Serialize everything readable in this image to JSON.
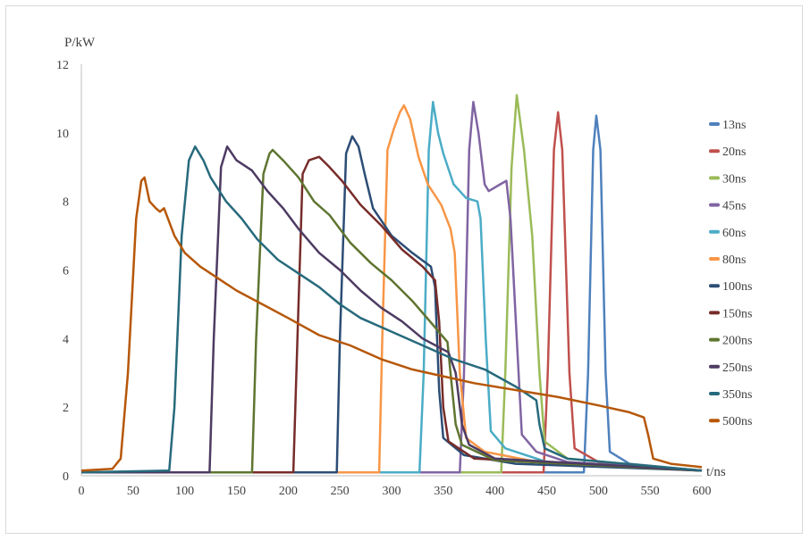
{
  "chart_data": {
    "type": "line",
    "title": "",
    "xlabel": "t/ns",
    "ylabel": "P/kW",
    "xlim": [
      0,
      600
    ],
    "ylim": [
      0,
      12
    ],
    "xticks": [
      "0",
      "50",
      "100",
      "150",
      "200",
      "250",
      "300",
      "350",
      "400",
      "450",
      "500",
      "550",
      "600"
    ],
    "yticks": [
      "0",
      "2",
      "4",
      "6",
      "8",
      "10",
      "12"
    ],
    "grid": false,
    "legend_position": "right",
    "series": [
      {
        "name": "13ns",
        "color": "#4F81BD",
        "points": [
          [
            0,
            0.1
          ],
          [
            486,
            0.1
          ],
          [
            490,
            3
          ],
          [
            495,
            9.5
          ],
          [
            498,
            10.5
          ],
          [
            502,
            9.5
          ],
          [
            507,
            3
          ],
          [
            511,
            0.7
          ],
          [
            530,
            0.35
          ],
          [
            600,
            0.15
          ]
        ]
      },
      {
        "name": "20ns",
        "color": "#C0504D",
        "points": [
          [
            0,
            0.1
          ],
          [
            447,
            0.1
          ],
          [
            451,
            3
          ],
          [
            457,
            9.5
          ],
          [
            461,
            10.6
          ],
          [
            465,
            9.5
          ],
          [
            472,
            3
          ],
          [
            477,
            0.8
          ],
          [
            500,
            0.4
          ],
          [
            600,
            0.15
          ]
        ]
      },
      {
        "name": "30ns",
        "color": "#9BBB59",
        "points": [
          [
            0,
            0.1
          ],
          [
            406,
            0.1
          ],
          [
            410,
            3
          ],
          [
            416,
            9
          ],
          [
            421,
            11.1
          ],
          [
            428,
            9.5
          ],
          [
            436,
            7
          ],
          [
            443,
            3
          ],
          [
            448,
            1.0
          ],
          [
            470,
            0.5
          ],
          [
            600,
            0.15
          ]
        ]
      },
      {
        "name": "45ns",
        "color": "#8064A2",
        "points": [
          [
            0,
            0.1
          ],
          [
            366,
            0.1
          ],
          [
            370,
            3
          ],
          [
            375,
            9.5
          ],
          [
            379,
            10.9
          ],
          [
            384,
            10
          ],
          [
            390,
            8.5
          ],
          [
            394,
            8.3
          ],
          [
            405,
            8.5
          ],
          [
            411,
            8.6
          ],
          [
            415,
            7.5
          ],
          [
            421,
            4
          ],
          [
            426,
            1.2
          ],
          [
            440,
            0.7
          ],
          [
            470,
            0.4
          ],
          [
            600,
            0.15
          ]
        ]
      },
      {
        "name": "60ns",
        "color": "#4BACC6",
        "points": [
          [
            0,
            0.1
          ],
          [
            327,
            0.1
          ],
          [
            331,
            3
          ],
          [
            336,
            9.5
          ],
          [
            340,
            10.9
          ],
          [
            345,
            10
          ],
          [
            350,
            9.4
          ],
          [
            360,
            8.5
          ],
          [
            372,
            8.1
          ],
          [
            383,
            8.0
          ],
          [
            386,
            7.5
          ],
          [
            391,
            4
          ],
          [
            396,
            1.3
          ],
          [
            410,
            0.8
          ],
          [
            450,
            0.4
          ],
          [
            600,
            0.15
          ]
        ]
      },
      {
        "name": "80ns",
        "color": "#F79646",
        "points": [
          [
            0,
            0.1
          ],
          [
            288,
            0.1
          ],
          [
            291,
            4
          ],
          [
            296,
            9.5
          ],
          [
            302,
            10.1
          ],
          [
            308,
            10.6
          ],
          [
            312,
            10.8
          ],
          [
            318,
            10.4
          ],
          [
            326,
            9.3
          ],
          [
            335,
            8.5
          ],
          [
            348,
            7.9
          ],
          [
            357,
            7.2
          ],
          [
            361,
            6.5
          ],
          [
            366,
            3
          ],
          [
            372,
            1.1
          ],
          [
            390,
            0.7
          ],
          [
            450,
            0.35
          ],
          [
            600,
            0.15
          ]
        ]
      },
      {
        "name": "100ns",
        "color": "#2C4D75",
        "points": [
          [
            0,
            0.1
          ],
          [
            247,
            0.1
          ],
          [
            250,
            4
          ],
          [
            256,
            9.4
          ],
          [
            262,
            9.9
          ],
          [
            268,
            9.6
          ],
          [
            274,
            8.8
          ],
          [
            282,
            7.8
          ],
          [
            300,
            7.0
          ],
          [
            320,
            6.5
          ],
          [
            338,
            6.1
          ],
          [
            342,
            5.5
          ],
          [
            346,
            2.5
          ],
          [
            350,
            1.1
          ],
          [
            370,
            0.6
          ],
          [
            420,
            0.35
          ],
          [
            600,
            0.15
          ]
        ]
      },
      {
        "name": "150ns",
        "color": "#772C2A",
        "points": [
          [
            0,
            0.1
          ],
          [
            205,
            0.1
          ],
          [
            209,
            4
          ],
          [
            214,
            8.8
          ],
          [
            220,
            9.2
          ],
          [
            230,
            9.3
          ],
          [
            240,
            9.0
          ],
          [
            252,
            8.6
          ],
          [
            270,
            7.9
          ],
          [
            290,
            7.3
          ],
          [
            310,
            6.6
          ],
          [
            330,
            6.1
          ],
          [
            342,
            5.7
          ],
          [
            346,
            4.5
          ],
          [
            350,
            2
          ],
          [
            355,
            1.0
          ],
          [
            380,
            0.5
          ],
          [
            600,
            0.15
          ]
        ]
      },
      {
        "name": "200ns",
        "color": "#5F7530",
        "points": [
          [
            0,
            0.1
          ],
          [
            165,
            0.1
          ],
          [
            169,
            4
          ],
          [
            176,
            8.8
          ],
          [
            182,
            9.4
          ],
          [
            185,
            9.5
          ],
          [
            195,
            9.2
          ],
          [
            210,
            8.7
          ],
          [
            225,
            8.0
          ],
          [
            240,
            7.6
          ],
          [
            260,
            6.8
          ],
          [
            280,
            6.2
          ],
          [
            300,
            5.7
          ],
          [
            320,
            5.1
          ],
          [
            340,
            4.4
          ],
          [
            354,
            3.9
          ],
          [
            357,
            3
          ],
          [
            362,
            1.5
          ],
          [
            368,
            0.9
          ],
          [
            400,
            0.45
          ],
          [
            600,
            0.15
          ]
        ]
      },
      {
        "name": "250ns",
        "color": "#4D3B62",
        "points": [
          [
            0,
            0.1
          ],
          [
            124,
            0.1
          ],
          [
            128,
            4
          ],
          [
            135,
            9.0
          ],
          [
            141,
            9.6
          ],
          [
            150,
            9.2
          ],
          [
            165,
            8.9
          ],
          [
            180,
            8.3
          ],
          [
            195,
            7.8
          ],
          [
            210,
            7.2
          ],
          [
            230,
            6.5
          ],
          [
            250,
            6.0
          ],
          [
            270,
            5.4
          ],
          [
            290,
            4.9
          ],
          [
            310,
            4.5
          ],
          [
            330,
            4.0
          ],
          [
            355,
            3.6
          ],
          [
            362,
            3.0
          ],
          [
            368,
            1.5
          ],
          [
            375,
            0.9
          ],
          [
            400,
            0.5
          ],
          [
            600,
            0.15
          ]
        ]
      },
      {
        "name": "350ns",
        "color": "#276A7C",
        "points": [
          [
            0,
            0.1
          ],
          [
            85,
            0.15
          ],
          [
            90,
            2
          ],
          [
            97,
            7
          ],
          [
            104,
            9.2
          ],
          [
            110,
            9.6
          ],
          [
            118,
            9.2
          ],
          [
            125,
            8.7
          ],
          [
            140,
            8.0
          ],
          [
            155,
            7.5
          ],
          [
            170,
            6.9
          ],
          [
            190,
            6.3
          ],
          [
            210,
            5.9
          ],
          [
            230,
            5.5
          ],
          [
            250,
            5.0
          ],
          [
            270,
            4.6
          ],
          [
            300,
            4.2
          ],
          [
            330,
            3.8
          ],
          [
            360,
            3.4
          ],
          [
            390,
            3.1
          ],
          [
            420,
            2.6
          ],
          [
            440,
            2.2
          ],
          [
            443,
            1.5
          ],
          [
            448,
            0.8
          ],
          [
            470,
            0.5
          ],
          [
            600,
            0.15
          ]
        ]
      },
      {
        "name": "500ns",
        "color": "#B65708",
        "points": [
          [
            0,
            0.15
          ],
          [
            30,
            0.2
          ],
          [
            38,
            0.5
          ],
          [
            45,
            3
          ],
          [
            53,
            7.5
          ],
          [
            58,
            8.6
          ],
          [
            61,
            8.7
          ],
          [
            66,
            8.0
          ],
          [
            72,
            7.8
          ],
          [
            76,
            7.7
          ],
          [
            80,
            7.8
          ],
          [
            90,
            7.0
          ],
          [
            100,
            6.5
          ],
          [
            115,
            6.1
          ],
          [
            130,
            5.8
          ],
          [
            150,
            5.4
          ],
          [
            175,
            5.0
          ],
          [
            200,
            4.6
          ],
          [
            230,
            4.1
          ],
          [
            260,
            3.8
          ],
          [
            290,
            3.4
          ],
          [
            320,
            3.1
          ],
          [
            350,
            2.9
          ],
          [
            380,
            2.7
          ],
          [
            420,
            2.5
          ],
          [
            460,
            2.3
          ],
          [
            500,
            2.05
          ],
          [
            530,
            1.85
          ],
          [
            544,
            1.7
          ],
          [
            548,
            1.2
          ],
          [
            553,
            0.5
          ],
          [
            570,
            0.35
          ],
          [
            600,
            0.25
          ]
        ]
      }
    ]
  }
}
